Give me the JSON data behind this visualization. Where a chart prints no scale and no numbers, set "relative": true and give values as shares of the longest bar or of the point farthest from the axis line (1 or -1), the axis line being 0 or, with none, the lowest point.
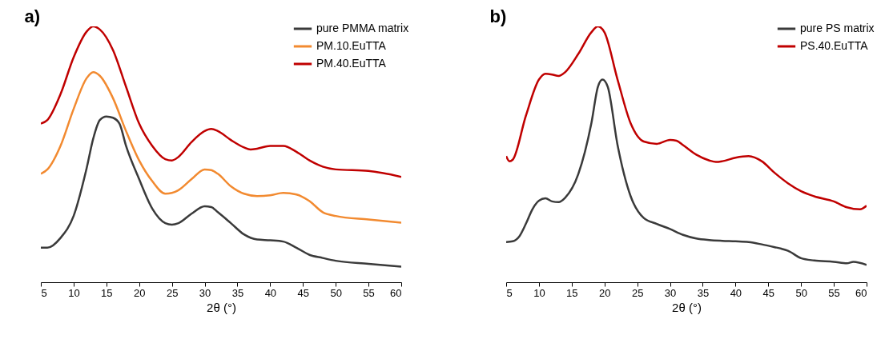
{
  "chart_data": [
    {
      "type": "line",
      "title": "a)",
      "xlabel": "2θ (°)",
      "relative": true,
      "legend": "top right",
      "grid": false,
      "xlim": [
        5,
        60
      ],
      "xticks": [
        5,
        10,
        15,
        20,
        25,
        30,
        35,
        40,
        45,
        50,
        55,
        60
      ],
      "x": [
        5,
        6,
        8,
        10,
        12,
        13,
        14,
        16,
        18,
        20,
        22,
        24,
        25,
        26,
        28,
        30,
        31,
        32,
        34,
        36,
        37,
        38,
        40,
        42,
        44,
        46,
        48,
        50,
        55,
        60
      ],
      "series": [
        {
          "name": "pure PMMA matrix",
          "color": "#3a3a3a",
          "x": [
            5,
            6,
            8,
            10,
            12,
            13,
            14,
            15,
            16,
            17,
            18,
            20,
            22,
            24,
            25,
            26,
            28,
            30,
            31,
            32,
            34,
            36,
            38,
            40,
            42,
            44,
            46,
            48,
            50,
            55,
            60
          ],
          "values": [
            0.135,
            0.135,
            0.173,
            0.259,
            0.447,
            0.562,
            0.634,
            0.648,
            0.643,
            0.62,
            0.533,
            0.403,
            0.288,
            0.231,
            0.225,
            0.231,
            0.268,
            0.297,
            0.294,
            0.274,
            0.231,
            0.187,
            0.167,
            0.164,
            0.159,
            0.135,
            0.107,
            0.095,
            0.084,
            0.072,
            0.061
          ]
        },
        {
          "name": "PM.10.EuTTA",
          "color": "#f28a30",
          "x": [
            5,
            6,
            8,
            10,
            12,
            13,
            14,
            16,
            18,
            20,
            22,
            24,
            25,
            26,
            28,
            30,
            31,
            32,
            34,
            36,
            38,
            40,
            42,
            44,
            46,
            48,
            50,
            55,
            60
          ],
          "values": [
            0.424,
            0.441,
            0.533,
            0.677,
            0.798,
            0.821,
            0.807,
            0.72,
            0.591,
            0.476,
            0.395,
            0.346,
            0.349,
            0.36,
            0.403,
            0.441,
            0.438,
            0.424,
            0.375,
            0.346,
            0.337,
            0.34,
            0.349,
            0.343,
            0.317,
            0.274,
            0.259,
            0.245,
            0.233
          ]
        },
        {
          "name": "PM.40.EuTTA",
          "color": "#c00000",
          "values": [
            0.62,
            0.634,
            0.735,
            0.879,
            0.98,
            1.0,
            0.988,
            0.908,
            0.764,
            0.62,
            0.533,
            0.481,
            0.476,
            0.49,
            0.548,
            0.591,
            0.599,
            0.591,
            0.556,
            0.527,
            0.519,
            0.522,
            0.533,
            0.533,
            0.51,
            0.476,
            0.452,
            0.441,
            0.435,
            0.412
          ]
        }
      ]
    },
    {
      "type": "line",
      "title": "b)",
      "xlabel": "2θ (°)",
      "relative": true,
      "legend": "top right",
      "grid": false,
      "xlim": [
        5,
        60
      ],
      "xticks": [
        5,
        10,
        15,
        20,
        25,
        30,
        35,
        40,
        45,
        50,
        55,
        60
      ],
      "series": [
        {
          "name": "pure PS matrix",
          "color": "#3a3a3a",
          "x": [
            5,
            6,
            7,
            8,
            9,
            10,
            11,
            12,
            13,
            14,
            16,
            18,
            19,
            19.7,
            20.5,
            22,
            24,
            26,
            28,
            30,
            32,
            34,
            36,
            38,
            40,
            42,
            44,
            46,
            47,
            48,
            50,
            52,
            55,
            57,
            58,
            60
          ],
          "values": [
            0.157,
            0.16,
            0.179,
            0.228,
            0.285,
            0.319,
            0.328,
            0.316,
            0.313,
            0.33,
            0.422,
            0.621,
            0.764,
            0.792,
            0.764,
            0.536,
            0.336,
            0.251,
            0.228,
            0.208,
            0.185,
            0.171,
            0.165,
            0.162,
            0.16,
            0.157,
            0.148,
            0.137,
            0.131,
            0.123,
            0.094,
            0.085,
            0.08,
            0.074,
            0.08,
            0.068
          ]
        },
        {
          "name": "PS.40.EuTTA",
          "color": "#c00000",
          "x": [
            5,
            5.5,
            6,
            8,
            10,
            11,
            12,
            13,
            14,
            16,
            18,
            19,
            20,
            22,
            24,
            26,
            28,
            30,
            31,
            32,
            34,
            36,
            37,
            38,
            40,
            42,
            44,
            46,
            48,
            50,
            52,
            55,
            57,
            59,
            60
          ],
          "values": [
            0.493,
            0.473,
            0.479,
            0.65,
            0.792,
            0.815,
            0.812,
            0.806,
            0.821,
            0.892,
            0.977,
            1.0,
            0.977,
            0.792,
            0.621,
            0.55,
            0.541,
            0.556,
            0.553,
            0.536,
            0.499,
            0.476,
            0.47,
            0.473,
            0.487,
            0.493,
            0.473,
            0.427,
            0.387,
            0.356,
            0.336,
            0.316,
            0.293,
            0.285,
            0.299
          ]
        }
      ]
    }
  ]
}
